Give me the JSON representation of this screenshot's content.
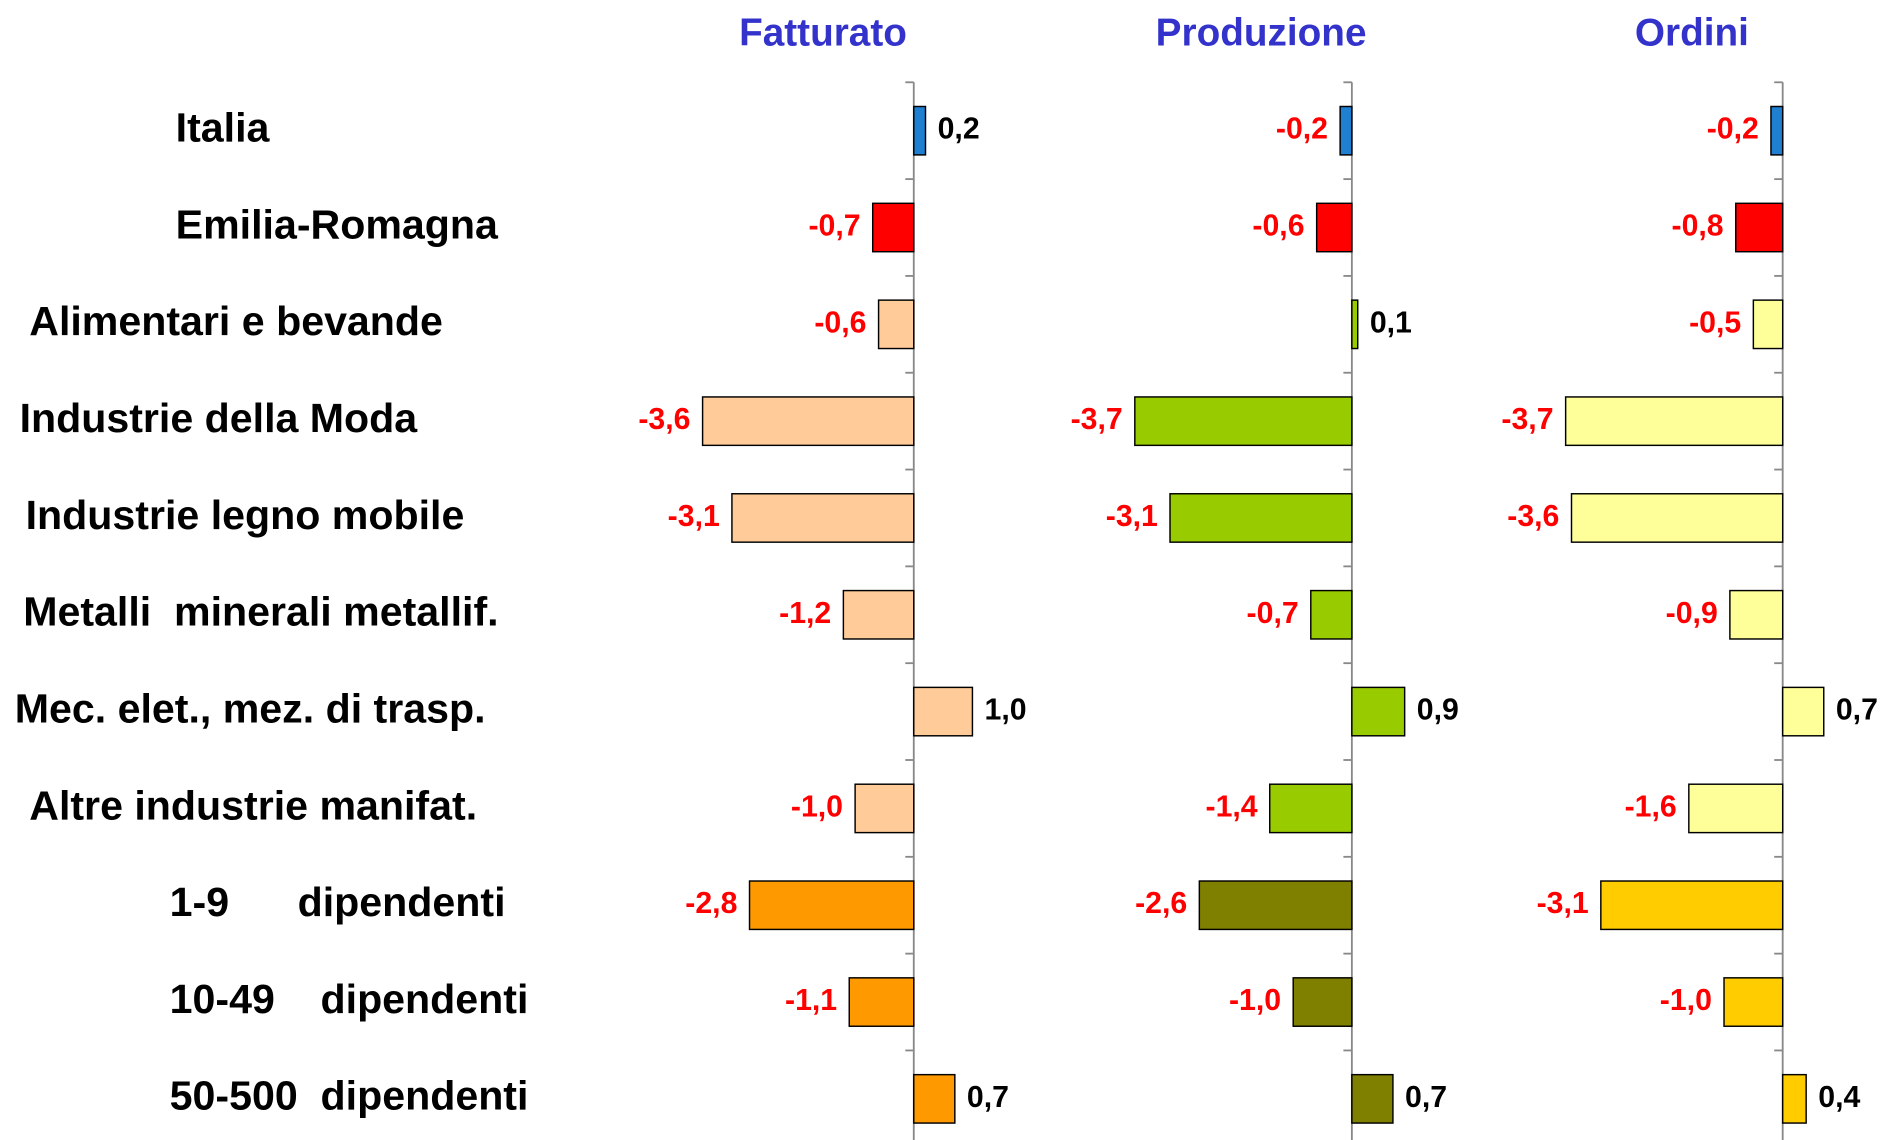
{
  "chart_data": {
    "type": "bar",
    "orientation": "horizontal",
    "categories": [
      "Italia",
      "Emilia-Romagna",
      "Alimentari e bevande",
      "Industrie della Moda",
      "Industrie legno mobile",
      "Metalli  minerali metallif.",
      "Mec. elet., mez. di trasp.",
      "Altre industrie manifat.",
      "1-9      dipendenti",
      "10-49    dipendenti",
      "50-500  dipendenti"
    ],
    "xlim": [
      -4,
      3.2
    ],
    "series": [
      {
        "name": "Fatturato",
        "values": [
          0.2,
          -0.7,
          -0.6,
          -3.6,
          -3.1,
          -1.2,
          1.0,
          -1.0,
          -2.8,
          -1.1,
          0.7
        ],
        "value_labels": [
          "0,2",
          "-0,7",
          "-0,6",
          "-3,6",
          "-3,1",
          "-1,2",
          "1,0",
          "-1,0",
          "-2,8",
          "-1,1",
          "0,7"
        ],
        "colors": [
          "#1f7fd0",
          "#ff0000",
          "#ffcc99",
          "#ffcc99",
          "#ffcc99",
          "#ffcc99",
          "#ffcc99",
          "#ffcc99",
          "#ff9900",
          "#ff9900",
          "#ff9900"
        ]
      },
      {
        "name": "Produzione",
        "values": [
          -0.2,
          -0.6,
          0.1,
          -3.7,
          -3.1,
          -0.7,
          0.9,
          -1.4,
          -2.6,
          -1.0,
          0.7
        ],
        "value_labels": [
          "-0,2",
          "-0,6",
          "0,1",
          "-3,7",
          "-3,1",
          "-0,7",
          "0,9",
          "-1,4",
          "-2,6",
          "-1,0",
          "0,7"
        ],
        "colors": [
          "#1f7fd0",
          "#ff0000",
          "#99cc00",
          "#99cc00",
          "#99cc00",
          "#99cc00",
          "#99cc00",
          "#99cc00",
          "#808000",
          "#808000",
          "#808000"
        ]
      },
      {
        "name": "Ordini",
        "values": [
          -0.2,
          -0.8,
          -0.5,
          -3.7,
          -3.6,
          -0.9,
          0.7,
          -1.6,
          -3.1,
          -1.0,
          0.4
        ],
        "value_labels": [
          "-0,2",
          "-0,8",
          "-0,5",
          "-3,7",
          "-3,6",
          "-0,9",
          "0,7",
          "-1,6",
          "-3,1",
          "-1,0",
          "0,4"
        ],
        "colors": [
          "#1f7fd0",
          "#ff0000",
          "#ffff99",
          "#ffff99",
          "#ffff99",
          "#ffff99",
          "#ffff99",
          "#ffff99",
          "#ffcc00",
          "#ffcc00",
          "#ffcc00"
        ]
      }
    ]
  }
}
